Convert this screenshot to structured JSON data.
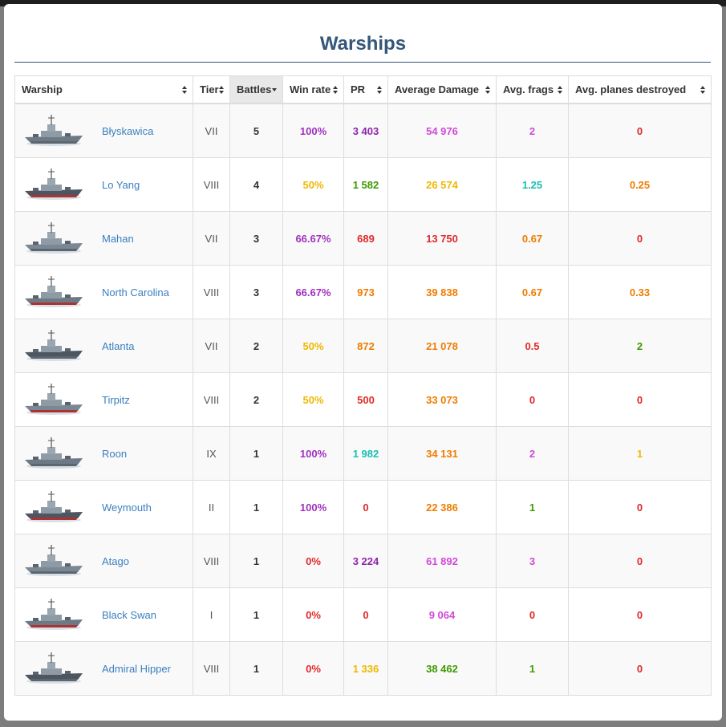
{
  "title": "Warships",
  "table": {
    "columns": [
      "Warship",
      "Tier",
      "Battles",
      "Win rate",
      "PR",
      "Average Damage",
      "Avg. frags",
      "Avg. planes destroyed"
    ],
    "rows": [
      [
        "Błyskawica",
        "VII",
        5,
        "100%",
        "3 403",
        "54 976",
        2,
        0
      ],
      [
        "Lo Yang",
        "VIII",
        4,
        "50%",
        "1 582",
        "26 574",
        1.25,
        0.25
      ],
      [
        "Mahan",
        "VII",
        3,
        "66.67%",
        689,
        "13 750",
        0.67,
        0
      ],
      [
        "North Carolina",
        "VIII",
        3,
        "66.67%",
        973,
        "39 838",
        0.67,
        0.33
      ],
      [
        "Atlanta",
        "VII",
        2,
        "50%",
        872,
        "21 078",
        0.5,
        2
      ],
      [
        "Tirpitz",
        "VIII",
        2,
        "50%",
        500,
        "33 073",
        0,
        0
      ],
      [
        "Roon",
        "IX",
        1,
        "100%",
        "1 982",
        "34 131",
        2,
        1
      ],
      [
        "Weymouth",
        "II",
        1,
        "100%",
        0,
        "22 386",
        1,
        0
      ],
      [
        "Atago",
        "VIII",
        1,
        "0%",
        "3 224",
        "61 892",
        3,
        0
      ],
      [
        "Black Swan",
        "I",
        1,
        "0%",
        0,
        "9 064",
        0,
        0
      ],
      [
        "Admiral Hipper",
        "VIII",
        1,
        "0%",
        "1 336",
        "38 462",
        1,
        0
      ]
    ],
    "colors": [
      [
        "#a030c0",
        "#8e24aa",
        "#d04ad8",
        "#d04ad8",
        "#e02a2a"
      ],
      [
        "#f0b800",
        "#3f9a00",
        "#f0b800",
        "#18c0b0",
        "#f07c00"
      ],
      [
        "#a030c0",
        "#e02a2a",
        "#e02a2a",
        "#f07c00",
        "#e02a2a"
      ],
      [
        "#a030c0",
        "#f07c00",
        "#f07c00",
        "#f07c00",
        "#f07c00"
      ],
      [
        "#f0b800",
        "#f07c00",
        "#f07c00",
        "#e02a2a",
        "#3f9a00"
      ],
      [
        "#f0b800",
        "#e02a2a",
        "#f07c00",
        "#e02a2a",
        "#e02a2a"
      ],
      [
        "#a030c0",
        "#18c0b0",
        "#f07c00",
        "#d04ad8",
        "#f0b800"
      ],
      [
        "#a030c0",
        "#e02a2a",
        "#f07c00",
        "#3f9a00",
        "#e02a2a"
      ],
      [
        "#e02a2a",
        "#8e24aa",
        "#d04ad8",
        "#d04ad8",
        "#e02a2a"
      ],
      [
        "#e02a2a",
        "#e02a2a",
        "#d04ad8",
        "#e02a2a",
        "#e02a2a"
      ],
      [
        "#e02a2a",
        "#f0b800",
        "#3f9a00",
        "#3f9a00",
        "#e02a2a"
      ]
    ]
  }
}
